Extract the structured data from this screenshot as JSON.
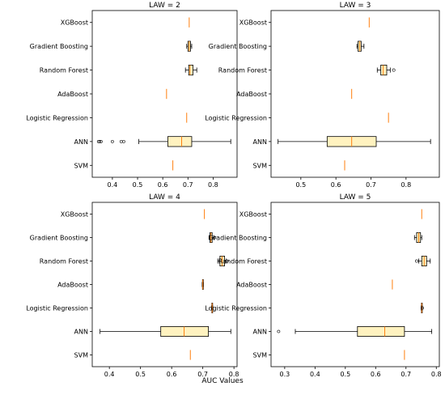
{
  "figure": {
    "xlabel": "AUC Values"
  },
  "colors": {
    "box_fill": "#fff2bf",
    "median": "#ff7f0e",
    "line": "#000000",
    "frame": "#000000"
  },
  "chart_data": [
    {
      "type": "boxplot",
      "title": "LAW = 2",
      "xlim": [
        0.32,
        0.895
      ],
      "xticks": [
        0.4,
        0.5,
        0.6,
        0.7,
        0.8
      ],
      "tick_labels": [
        "0.4",
        "0.5",
        "0.6",
        "0.7",
        "0.8"
      ],
      "categories": [
        "XGBoost",
        "Gradient Boosting",
        "Random Forest",
        "AdaBoost",
        "Logistic Regression",
        "ANN",
        "SVM"
      ],
      "boxes": [
        {
          "name": "XGBoost",
          "wlo": 0.705,
          "q1": 0.705,
          "med": 0.705,
          "q3": 0.705,
          "whi": 0.705,
          "fliers": []
        },
        {
          "name": "Gradient Boosting",
          "wlo": 0.695,
          "q1": 0.7,
          "med": 0.705,
          "q3": 0.71,
          "whi": 0.715,
          "fliers": []
        },
        {
          "name": "Random Forest",
          "wlo": 0.69,
          "q1": 0.703,
          "med": 0.708,
          "q3": 0.72,
          "whi": 0.735,
          "fliers": []
        },
        {
          "name": "AdaBoost",
          "wlo": 0.615,
          "q1": 0.615,
          "med": 0.615,
          "q3": 0.615,
          "whi": 0.615,
          "fliers": []
        },
        {
          "name": "Logistic Regression",
          "wlo": 0.695,
          "q1": 0.695,
          "med": 0.695,
          "q3": 0.695,
          "whi": 0.695,
          "fliers": []
        },
        {
          "name": "ANN",
          "wlo": 0.505,
          "q1": 0.62,
          "med": 0.675,
          "q3": 0.715,
          "whi": 0.87,
          "fliers": [
            0.345,
            0.35,
            0.355,
            0.4,
            0.435,
            0.445
          ]
        },
        {
          "name": "SVM",
          "wlo": 0.64,
          "q1": 0.64,
          "med": 0.64,
          "q3": 0.64,
          "whi": 0.64,
          "fliers": []
        }
      ]
    },
    {
      "type": "boxplot",
      "title": "LAW = 3",
      "xlim": [
        0.415,
        0.895
      ],
      "xticks": [
        0.5,
        0.6,
        0.7,
        0.8
      ],
      "tick_labels": [
        "0.5",
        "0.6",
        "0.7",
        "0.8"
      ],
      "categories": [
        "XGBoost",
        "Gradient Boosting",
        "Random Forest",
        "AdaBoost",
        "Logistic Regression",
        "ANN",
        "SVM"
      ],
      "boxes": [
        {
          "name": "XGBoost",
          "wlo": 0.695,
          "q1": 0.695,
          "med": 0.695,
          "q3": 0.695,
          "whi": 0.695,
          "fliers": []
        },
        {
          "name": "Gradient Boosting",
          "wlo": 0.66,
          "q1": 0.663,
          "med": 0.668,
          "q3": 0.672,
          "whi": 0.68,
          "fliers": []
        },
        {
          "name": "Random Forest",
          "wlo": 0.718,
          "q1": 0.728,
          "med": 0.735,
          "q3": 0.745,
          "whi": 0.755,
          "fliers": [
            0.765
          ]
        },
        {
          "name": "AdaBoost",
          "wlo": 0.645,
          "q1": 0.645,
          "med": 0.645,
          "q3": 0.645,
          "whi": 0.645,
          "fliers": []
        },
        {
          "name": "Logistic Regression",
          "wlo": 0.75,
          "q1": 0.75,
          "med": 0.75,
          "q3": 0.75,
          "whi": 0.75,
          "fliers": []
        },
        {
          "name": "ANN",
          "wlo": 0.435,
          "q1": 0.575,
          "med": 0.645,
          "q3": 0.715,
          "whi": 0.87,
          "fliers": []
        },
        {
          "name": "SVM",
          "wlo": 0.625,
          "q1": 0.625,
          "med": 0.625,
          "q3": 0.625,
          "whi": 0.625,
          "fliers": []
        }
      ]
    },
    {
      "type": "boxplot",
      "title": "LAW = 4",
      "xlim": [
        0.345,
        0.81
      ],
      "xticks": [
        0.4,
        0.5,
        0.6,
        0.7,
        0.8
      ],
      "tick_labels": [
        "0.4",
        "0.5",
        "0.6",
        "0.7",
        "0.8"
      ],
      "categories": [
        "XGBoost",
        "Gradient Boosting",
        "Random Forest",
        "AdaBoost",
        "Logistic Regression",
        "ANN",
        "SVM"
      ],
      "boxes": [
        {
          "name": "XGBoost",
          "wlo": 0.705,
          "q1": 0.705,
          "med": 0.705,
          "q3": 0.705,
          "whi": 0.705,
          "fliers": []
        },
        {
          "name": "Gradient Boosting",
          "wlo": 0.72,
          "q1": 0.723,
          "med": 0.726,
          "q3": 0.73,
          "whi": 0.735,
          "fliers": [
            0.738
          ]
        },
        {
          "name": "Random Forest",
          "wlo": 0.748,
          "q1": 0.755,
          "med": 0.762,
          "q3": 0.77,
          "whi": 0.775,
          "fliers": [
            0.778
          ]
        },
        {
          "name": "AdaBoost",
          "wlo": 0.698,
          "q1": 0.699,
          "med": 0.7,
          "q3": 0.701,
          "whi": 0.702,
          "fliers": []
        },
        {
          "name": "Logistic Regression",
          "wlo": 0.728,
          "q1": 0.729,
          "med": 0.73,
          "q3": 0.731,
          "whi": 0.732,
          "fliers": []
        },
        {
          "name": "ANN",
          "wlo": 0.37,
          "q1": 0.565,
          "med": 0.64,
          "q3": 0.718,
          "whi": 0.79,
          "fliers": []
        },
        {
          "name": "SVM",
          "wlo": 0.66,
          "q1": 0.66,
          "med": 0.66,
          "q3": 0.66,
          "whi": 0.66,
          "fliers": []
        }
      ]
    },
    {
      "type": "boxplot",
      "title": "LAW = 5",
      "xlim": [
        0.255,
        0.81
      ],
      "xticks": [
        0.3,
        0.4,
        0.5,
        0.6,
        0.7,
        0.8
      ],
      "tick_labels": [
        "0.3",
        "0.4",
        "0.5",
        "0.6",
        "0.7",
        "0.8"
      ],
      "categories": [
        "XGBoost",
        "Gradient Boosting",
        "Random Forest",
        "AdaBoost",
        "Logistic Regression",
        "ANN",
        "SVM"
      ],
      "boxes": [
        {
          "name": "XGBoost",
          "wlo": 0.752,
          "q1": 0.752,
          "med": 0.752,
          "q3": 0.752,
          "whi": 0.752,
          "fliers": []
        },
        {
          "name": "Gradient Boosting",
          "wlo": 0.728,
          "q1": 0.735,
          "med": 0.742,
          "q3": 0.748,
          "whi": 0.752,
          "fliers": []
        },
        {
          "name": "Random Forest",
          "wlo": 0.742,
          "q1": 0.752,
          "med": 0.76,
          "q3": 0.768,
          "whi": 0.78,
          "fliers": [
            0.735
          ]
        },
        {
          "name": "AdaBoost",
          "wlo": 0.655,
          "q1": 0.655,
          "med": 0.655,
          "q3": 0.655,
          "whi": 0.655,
          "fliers": []
        },
        {
          "name": "Logistic Regression",
          "wlo": 0.75,
          "q1": 0.751,
          "med": 0.752,
          "q3": 0.753,
          "whi": 0.754,
          "fliers": [
            0.754
          ]
        },
        {
          "name": "ANN",
          "wlo": 0.335,
          "q1": 0.54,
          "med": 0.63,
          "q3": 0.695,
          "whi": 0.785,
          "fliers": [
            0.28
          ]
        },
        {
          "name": "SVM",
          "wlo": 0.695,
          "q1": 0.695,
          "med": 0.695,
          "q3": 0.695,
          "whi": 0.695,
          "fliers": []
        }
      ]
    }
  ]
}
